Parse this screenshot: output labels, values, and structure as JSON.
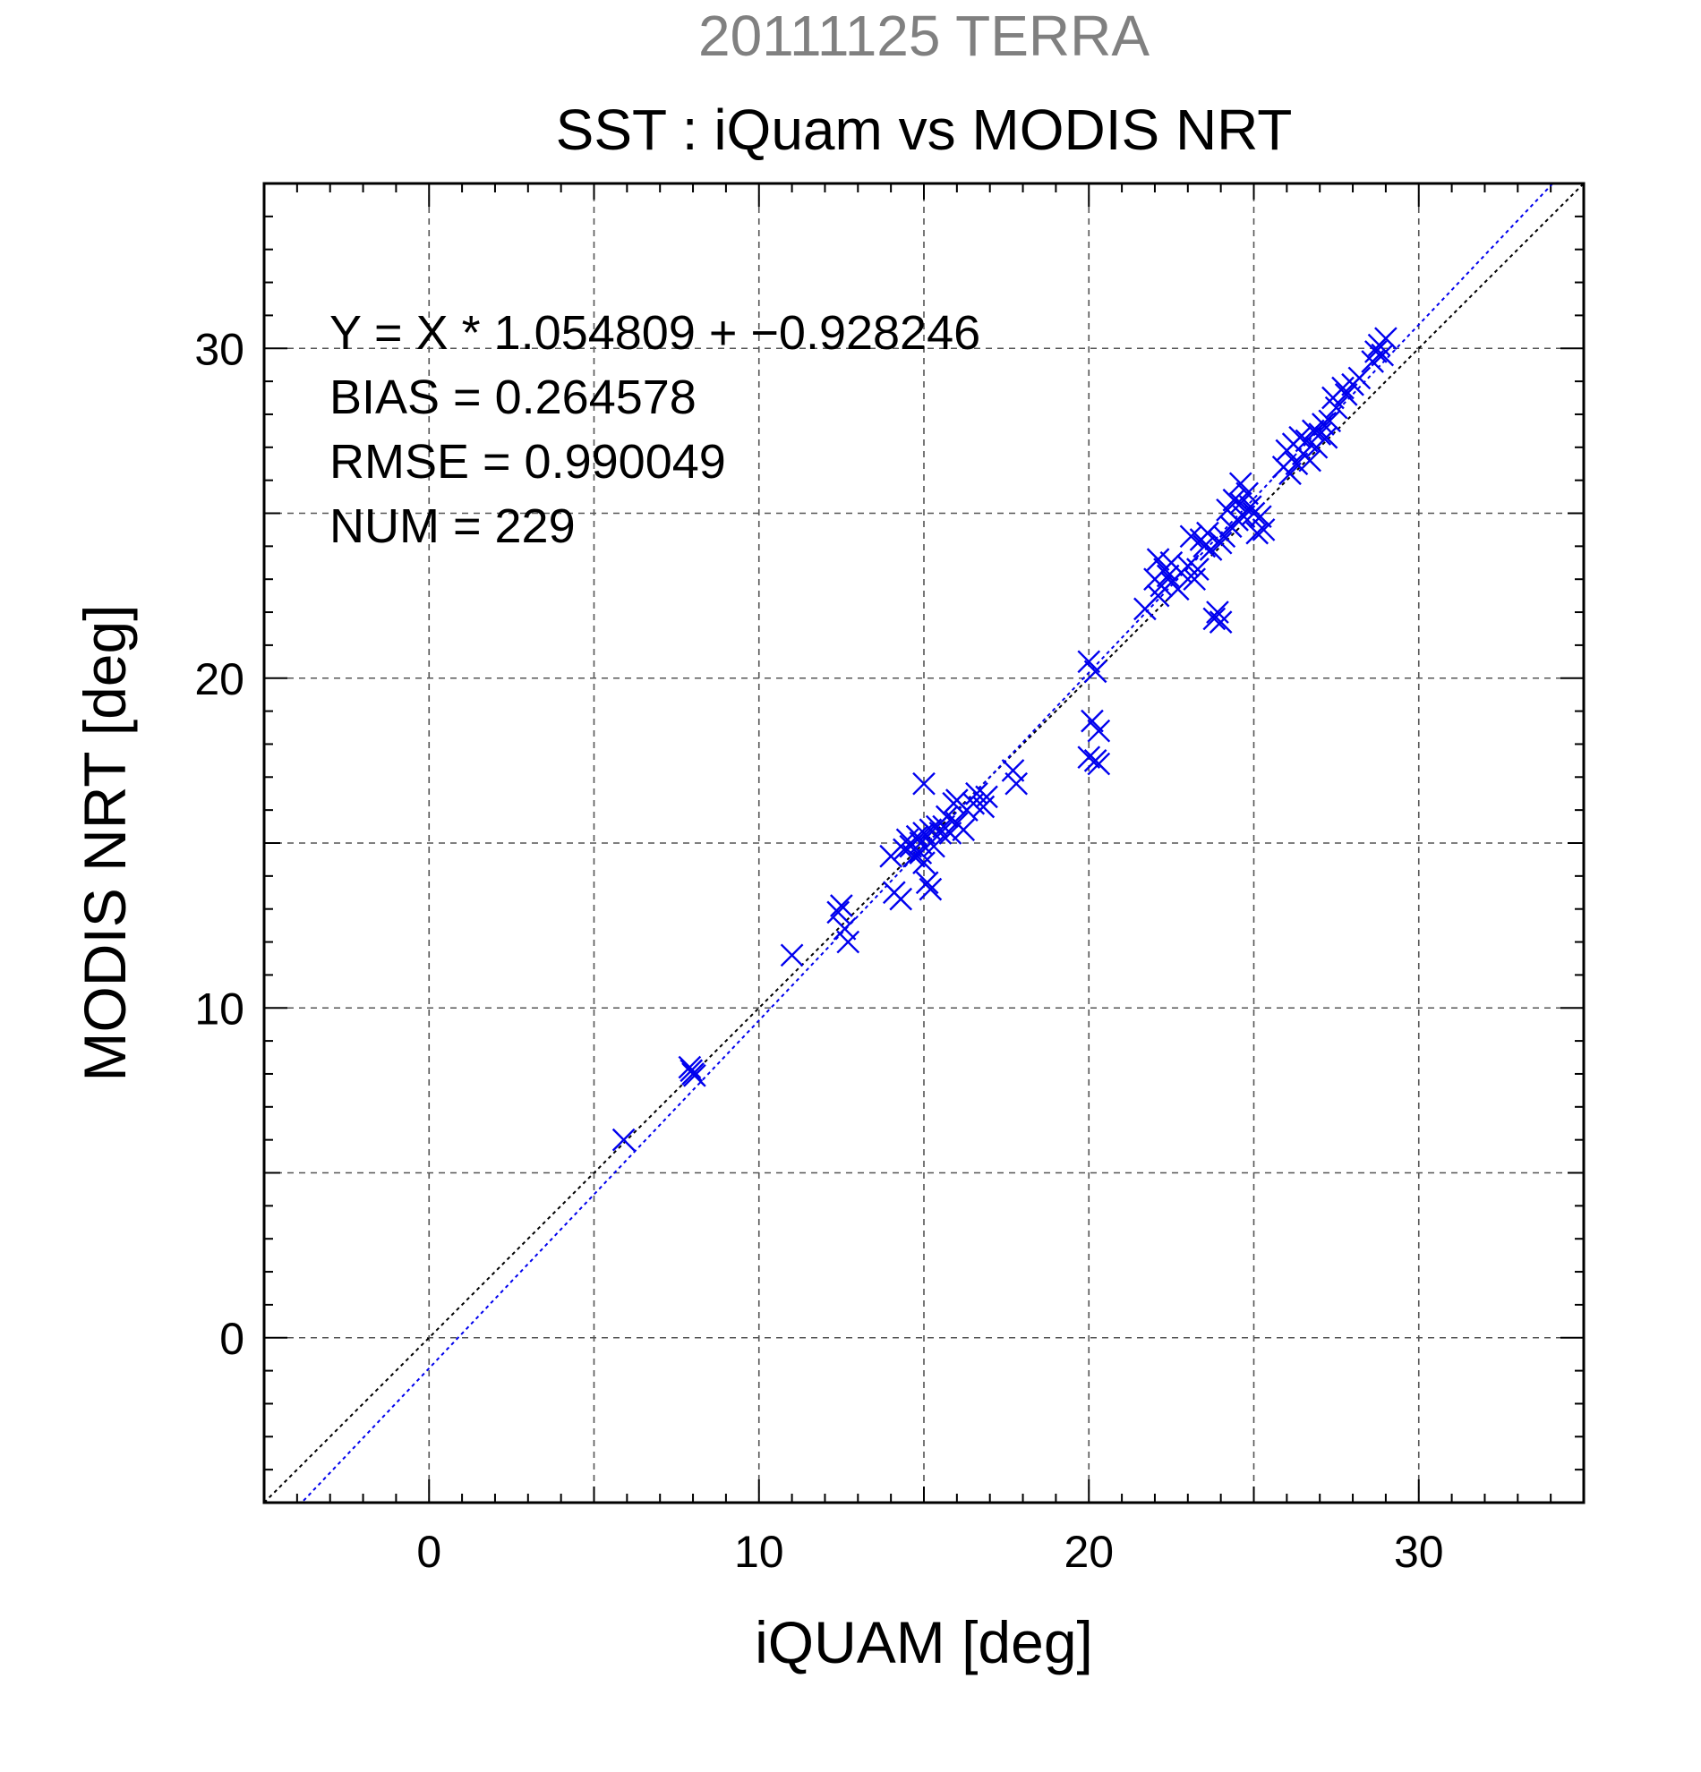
{
  "chart_data": {
    "type": "scatter",
    "suptitle": "20111125 TERRA",
    "title": "SST : iQuam vs MODIS NRT",
    "xlabel": "iQUAM [deg]",
    "ylabel": "MODIS NRT [deg]",
    "xlim": [
      -5,
      35
    ],
    "ylim": [
      -5,
      35
    ],
    "xticks": [
      0,
      10,
      20,
      30
    ],
    "yticks": [
      0,
      10,
      20,
      30
    ],
    "xtick_labels": [
      "0",
      "10",
      "20",
      "30"
    ],
    "ytick_labels": [
      "0",
      "10",
      "20",
      "30"
    ],
    "grid": true,
    "annotations": [
      "Y = X * 1.054809 + −0.928246",
      "BIAS = 0.264578",
      "RMSE = 0.990049",
      "NUM = 229"
    ],
    "fit": {
      "slope": 1.054809,
      "intercept": -0.928246
    },
    "marker_color": "#0000ee",
    "fit_line_color": "#0000ee",
    "identity_line_color": "#000000",
    "suptitle_color": "#808080",
    "points": [
      [
        5.9,
        6.0
      ],
      [
        7.9,
        8.2
      ],
      [
        8.0,
        8.0
      ],
      [
        7.95,
        8.1
      ],
      [
        8.05,
        7.95
      ],
      [
        11.0,
        11.6
      ],
      [
        12.4,
        12.9
      ],
      [
        12.5,
        13.1
      ],
      [
        12.6,
        12.4
      ],
      [
        12.7,
        12.0
      ],
      [
        14.0,
        14.6
      ],
      [
        14.1,
        13.5
      ],
      [
        14.3,
        13.3
      ],
      [
        14.4,
        14.8
      ],
      [
        14.5,
        15.1
      ],
      [
        14.6,
        14.9
      ],
      [
        14.7,
        14.6
      ],
      [
        14.8,
        15.2
      ],
      [
        14.9,
        14.7
      ],
      [
        14.9,
        15.0
      ],
      [
        15.0,
        15.3
      ],
      [
        15.0,
        14.4
      ],
      [
        15.0,
        16.8
      ],
      [
        15.1,
        13.8
      ],
      [
        15.2,
        13.6
      ],
      [
        15.2,
        15.4
      ],
      [
        15.3,
        14.9
      ],
      [
        15.4,
        15.5
      ],
      [
        15.5,
        15.3
      ],
      [
        15.6,
        15.5
      ],
      [
        15.7,
        15.8
      ],
      [
        15.8,
        15.3
      ],
      [
        15.9,
        16.2
      ],
      [
        16.0,
        15.6
      ],
      [
        16.0,
        16.3
      ],
      [
        16.2,
        15.4
      ],
      [
        16.3,
        16.0
      ],
      [
        16.5,
        16.2
      ],
      [
        16.6,
        16.5
      ],
      [
        16.8,
        16.1
      ],
      [
        16.9,
        16.4
      ],
      [
        17.7,
        17.2
      ],
      [
        17.8,
        16.8
      ],
      [
        20.0,
        17.6
      ],
      [
        20.0,
        20.5
      ],
      [
        20.1,
        18.7
      ],
      [
        20.2,
        17.5
      ],
      [
        20.2,
        20.2
      ],
      [
        20.3,
        18.4
      ],
      [
        20.3,
        17.4
      ],
      [
        21.7,
        22.1
      ],
      [
        22.0,
        23.0
      ],
      [
        22.1,
        22.5
      ],
      [
        22.1,
        23.6
      ],
      [
        22.2,
        22.8
      ],
      [
        22.3,
        23.3
      ],
      [
        22.4,
        23.1
      ],
      [
        22.5,
        23.5
      ],
      [
        22.5,
        22.9
      ],
      [
        22.7,
        22.7
      ],
      [
        22.8,
        23.2
      ],
      [
        23.0,
        23.4
      ],
      [
        23.1,
        24.3
      ],
      [
        23.2,
        23.0
      ],
      [
        23.3,
        23.3
      ],
      [
        23.4,
        24.2
      ],
      [
        23.5,
        24.0
      ],
      [
        23.6,
        24.4
      ],
      [
        23.7,
        23.9
      ],
      [
        23.8,
        21.8
      ],
      [
        23.9,
        22.0
      ],
      [
        24.0,
        24.1
      ],
      [
        24.0,
        21.7
      ],
      [
        24.1,
        24.3
      ],
      [
        24.2,
        25.1
      ],
      [
        24.3,
        24.6
      ],
      [
        24.4,
        25.4
      ],
      [
        24.5,
        24.8
      ],
      [
        24.6,
        25.3
      ],
      [
        24.6,
        25.9
      ],
      [
        24.7,
        24.9
      ],
      [
        24.8,
        25.6
      ],
      [
        24.9,
        25.2
      ],
      [
        25.0,
        25.0
      ],
      [
        25.1,
        24.4
      ],
      [
        25.2,
        24.9
      ],
      [
        25.3,
        24.5
      ],
      [
        25.9,
        26.4
      ],
      [
        26.0,
        26.9
      ],
      [
        26.1,
        26.2
      ],
      [
        26.2,
        27.1
      ],
      [
        26.3,
        26.5
      ],
      [
        26.4,
        27.3
      ],
      [
        26.5,
        26.8
      ],
      [
        26.6,
        27.2
      ],
      [
        26.7,
        26.6
      ],
      [
        26.8,
        27.5
      ],
      [
        26.9,
        27.0
      ],
      [
        27.0,
        27.4
      ],
      [
        27.1,
        27.7
      ],
      [
        27.2,
        27.3
      ],
      [
        27.3,
        27.8
      ],
      [
        27.4,
        28.5
      ],
      [
        27.5,
        28.2
      ],
      [
        27.7,
        28.8
      ],
      [
        27.8,
        28.6
      ],
      [
        28.0,
        28.9
      ],
      [
        28.2,
        29.1
      ],
      [
        28.6,
        29.6
      ],
      [
        28.7,
        29.9
      ],
      [
        28.8,
        30.1
      ],
      [
        28.9,
        29.8
      ],
      [
        29.0,
        30.3
      ]
    ]
  }
}
